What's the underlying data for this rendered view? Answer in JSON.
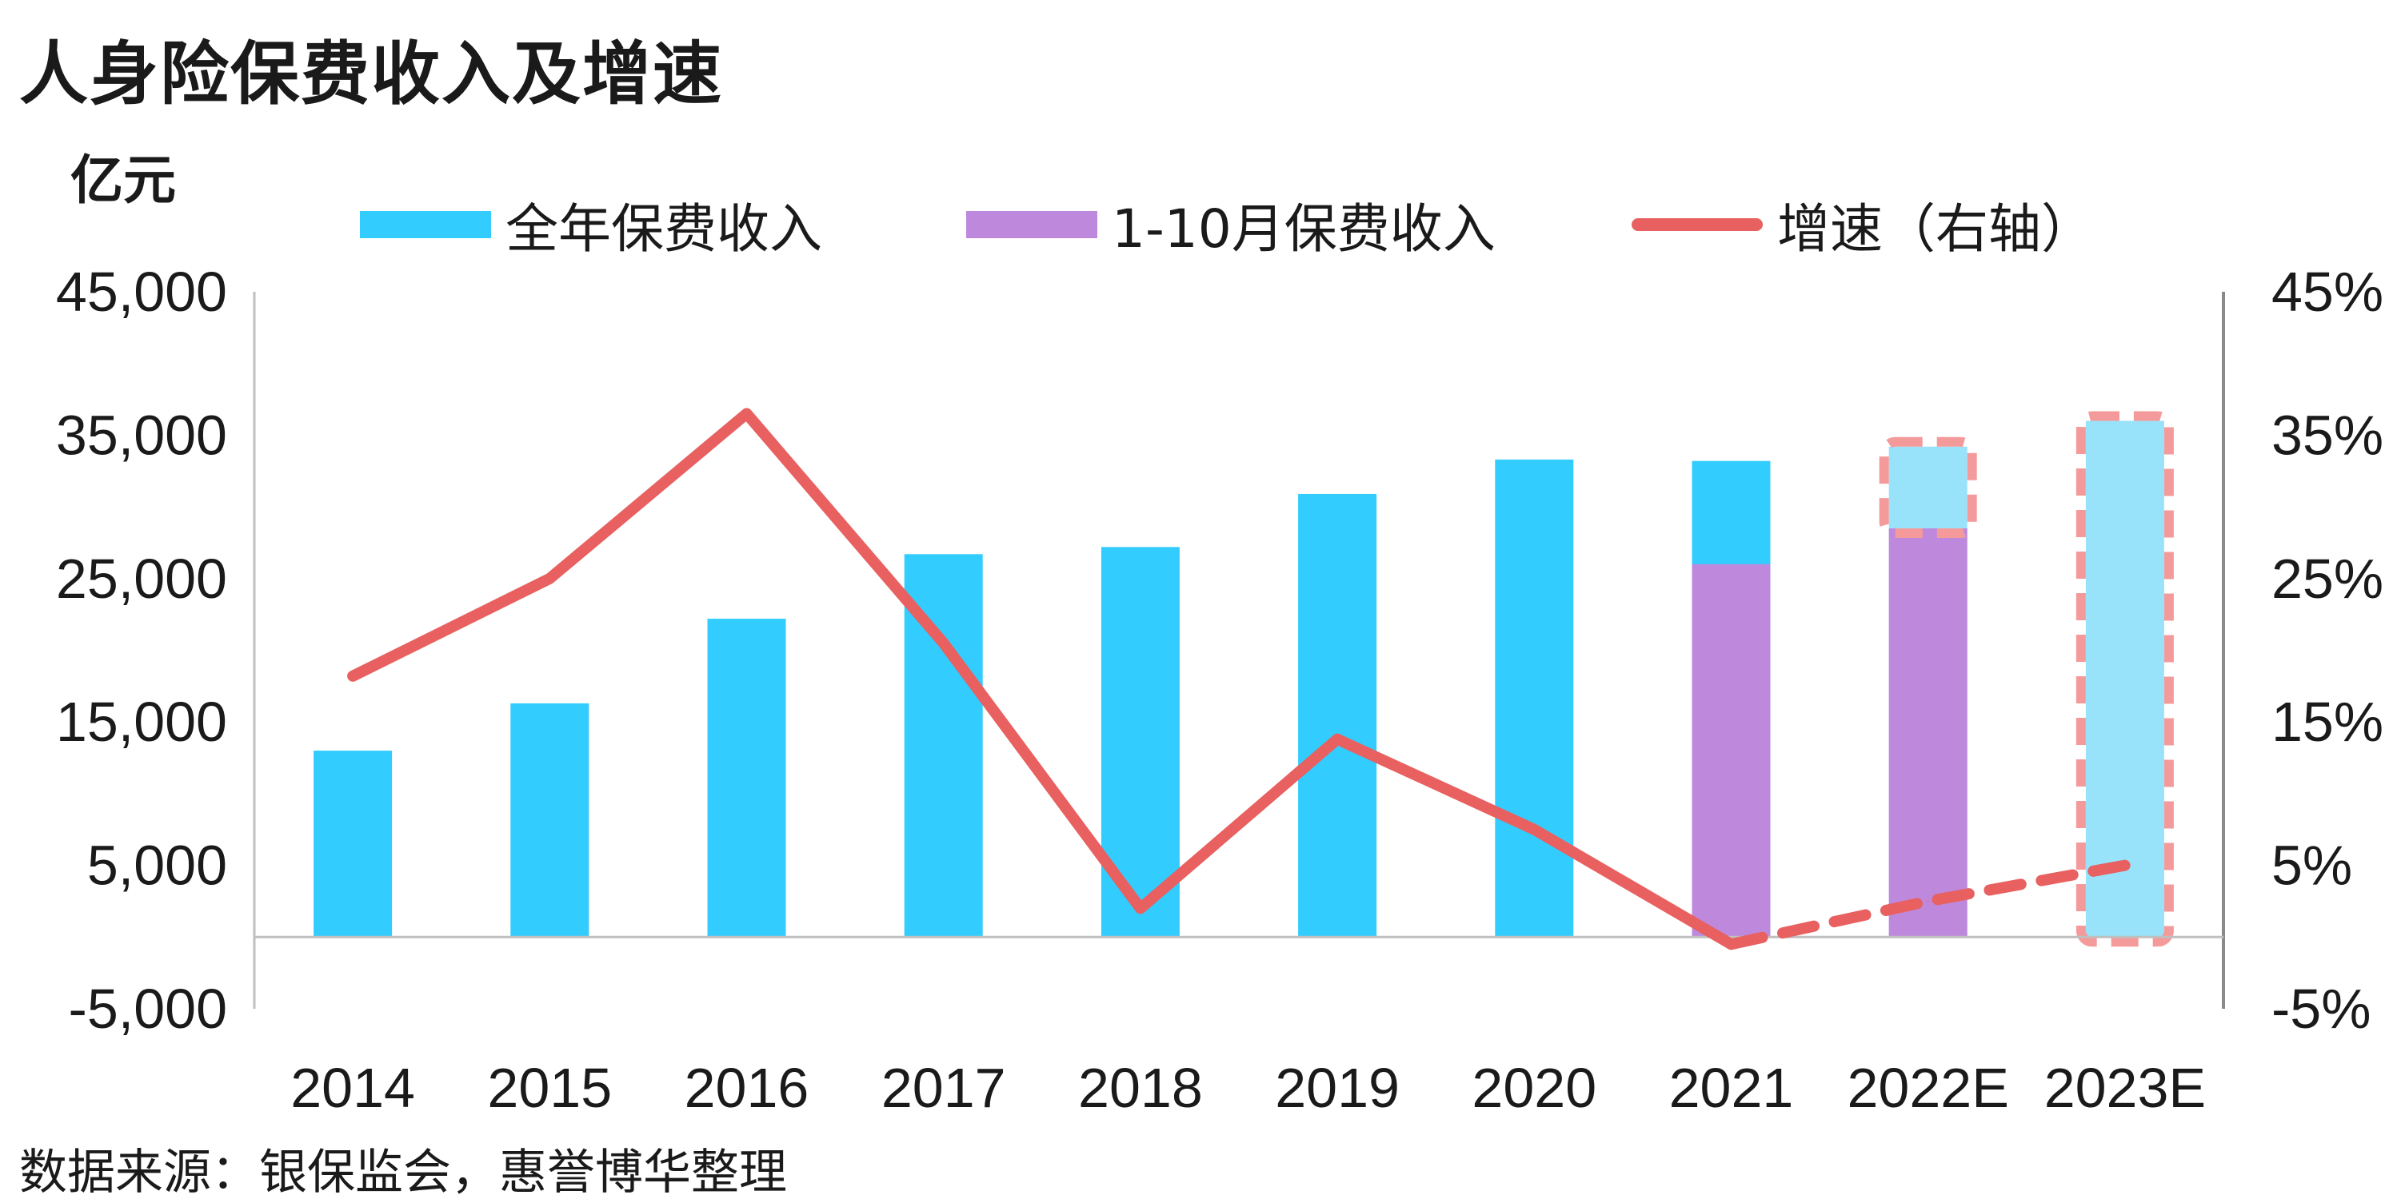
{
  "title": "人身险保费收入及增速",
  "unit_label": "亿元",
  "source": "数据来源：银保监会，惠誉博华整理",
  "legend": [
    {
      "label": "全年保费收入",
      "kind": "bar",
      "color": "#33CCFF"
    },
    {
      "label": "1-10月保费收入",
      "kind": "bar",
      "color": "#BE89DD"
    },
    {
      "label": "增速（右轴）",
      "kind": "line",
      "color": "#E86060"
    }
  ],
  "chart_data": {
    "type": "bar",
    "categories": [
      "2014",
      "2015",
      "2016",
      "2017",
      "2018",
      "2019",
      "2020",
      "2021",
      "2022E",
      "2023E"
    ],
    "series": [
      {
        "name": "全年保费收入",
        "type": "bar",
        "axis": "left",
        "color": "#33CCFF",
        "values": [
          13000,
          16300,
          22200,
          26700,
          27200,
          30900,
          33300,
          33200,
          34200,
          36000
        ],
        "estimated": [
          false,
          false,
          false,
          false,
          false,
          false,
          false,
          false,
          true,
          true
        ]
      },
      {
        "name": "1-10月保费收入",
        "type": "bar",
        "axis": "left",
        "color": "#BE89DD",
        "values": [
          null,
          null,
          null,
          null,
          null,
          null,
          null,
          26000,
          28500,
          null
        ]
      },
      {
        "name": "增速（右轴）",
        "type": "line",
        "axis": "right",
        "color": "#E86060",
        "values": [
          18.2,
          25.0,
          36.5,
          20.5,
          2.0,
          13.8,
          7.5,
          -0.5,
          2.5,
          5.0
        ],
        "dashed_from_index": 7
      }
    ],
    "left_axis": {
      "ticks": [
        "45,000",
        "35,000",
        "25,000",
        "15,000",
        "5,000",
        "-5,000"
      ],
      "ylim": [
        -5000,
        45000
      ]
    },
    "right_axis": {
      "ticks": [
        "45%",
        "35%",
        "25%",
        "15%",
        "5%",
        "-5%"
      ],
      "ylim": [
        -5,
        45
      ]
    },
    "estimate_highlight_color": "#F59A9A",
    "estimate_fill_color": "#99E3FA",
    "grid": false,
    "legend_position": "top"
  }
}
